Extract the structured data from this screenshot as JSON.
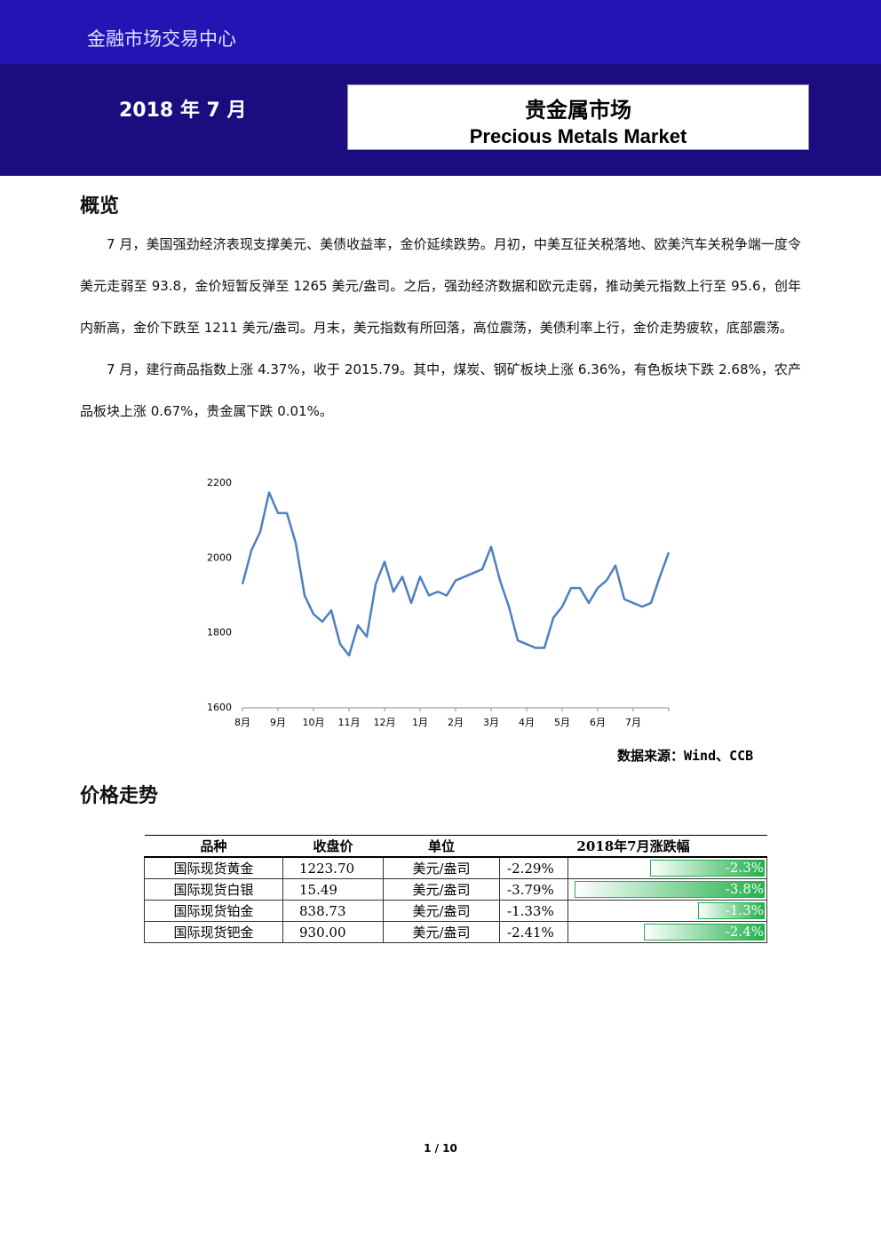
{
  "header": {
    "brand": "金融市场交易中心",
    "date": "2018 年 7 月",
    "title_cn": "贵金属市场",
    "title_en": "Precious Metals Market"
  },
  "overview": {
    "heading": "概览",
    "paragraphs": [
      "7 月，美国强劲经济表现支撑美元、美债收益率，金价延续跌势。月初，中美互征关税落地、欧美汽车关税争端一度令美元走弱至 93.8，金价短暂反弹至 1265 美元/盎司。之后，强劲经济数据和欧元走弱，推动美元指数上行至 95.6，创年内新高，金价下跌至 1211 美元/盎司。月末，美元指数有所回落，高位震荡，美债利率上行，金价走势疲软，底部震荡。",
      "7 月，建行商品指数上涨 4.37%，收于 2015.79。其中，煤炭、钢矿板块上涨 6.36%，有色板块下跌 2.68%，农产品板块上涨 0.67%，贵金属下跌 0.01%。"
    ],
    "source": "数据来源：Wind、CCB"
  },
  "chart_data": {
    "type": "line",
    "color": "#4f7fbf",
    "categories": [
      "8月",
      null,
      null,
      null,
      "9月",
      null,
      null,
      null,
      "10月",
      null,
      null,
      null,
      "11月",
      null,
      null,
      null,
      "12月",
      null,
      null,
      null,
      "1月",
      null,
      null,
      null,
      "2月",
      null,
      null,
      null,
      "3月",
      null,
      null,
      null,
      "4月",
      null,
      null,
      null,
      "5月",
      null,
      null,
      null,
      "6月",
      null,
      null,
      null,
      "7月",
      null,
      null,
      null,
      null
    ],
    "values": [
      1930,
      2020,
      2070,
      2175,
      2120,
      2120,
      2040,
      1900,
      1850,
      1830,
      1860,
      1770,
      1740,
      1820,
      1790,
      1930,
      1990,
      1910,
      1950,
      1880,
      1950,
      1900,
      1910,
      1900,
      1940,
      1950,
      1960,
      1970,
      2030,
      1940,
      1870,
      1780,
      1770,
      1760,
      1760,
      1840,
      1870,
      1920,
      1920,
      1880,
      1920,
      1940,
      1980,
      1890,
      1880,
      1870,
      1880,
      1950,
      2015
    ],
    "ylim": [
      1600,
      2200
    ],
    "yticks": [
      1600,
      1800,
      2000,
      2200
    ],
    "grid": false
  },
  "prices": {
    "heading": "价格走势",
    "table": {
      "columns": [
        "品种",
        "收盘价",
        "单位",
        "2018年7月涨跌幅"
      ],
      "rows": [
        [
          "国际现货黄金",
          "1223.70",
          "美元/盎司",
          "-2.29%"
        ],
        [
          "国际现货白银",
          "15.49",
          "美元/盎司",
          "-3.79%"
        ],
        [
          "国际现货铂金",
          "838.73",
          "美元/盎司",
          "-1.33%"
        ],
        [
          "国际现货钯金",
          "930.00",
          "美元/盎司",
          "-2.41%"
        ]
      ],
      "bars": {
        "values": [
          -2.29,
          -3.79,
          -1.33,
          -2.41
        ],
        "value_labels": [
          "-2.3%",
          "-3.8%",
          "-1.3%",
          "-2.4%"
        ]
      }
    }
  },
  "footer": {
    "page": "1 / 10"
  }
}
